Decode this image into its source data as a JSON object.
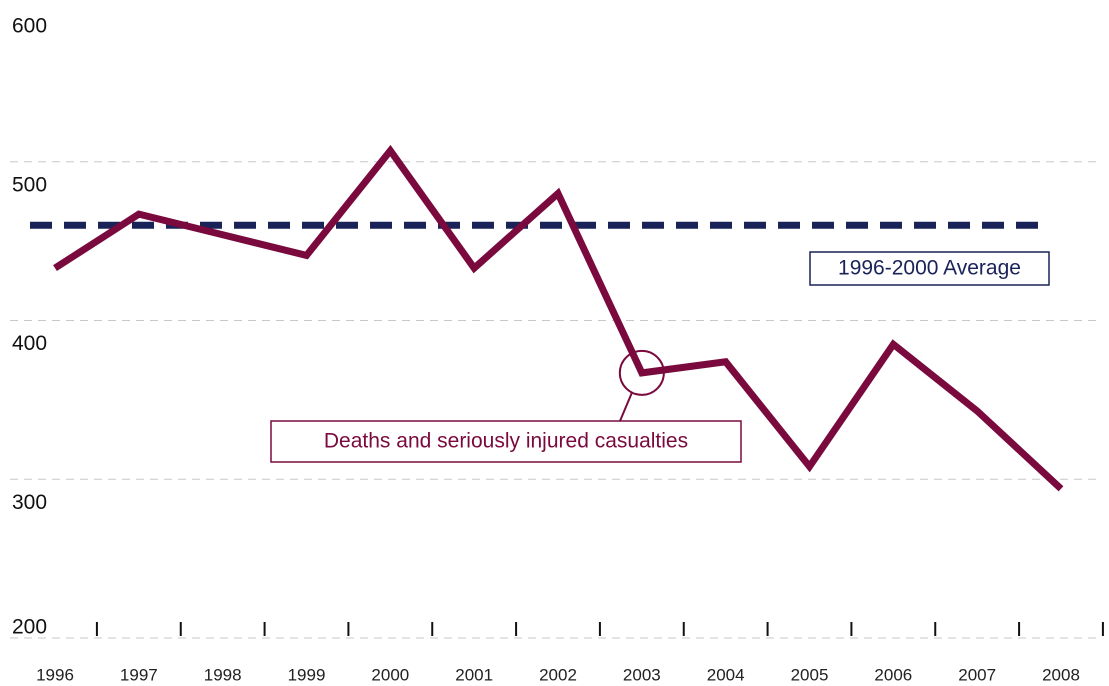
{
  "chart_data": {
    "type": "line",
    "x": [
      1996,
      1997,
      1998,
      1999,
      2000,
      2001,
      2002,
      2003,
      2004,
      2005,
      2006,
      2007,
      2008
    ],
    "series": [
      {
        "name": "Deaths and seriously injured casualties",
        "color": "#7a0a3e",
        "values": [
          433,
          467,
          454,
          441,
          507,
          433,
          480,
          367,
          374,
          308,
          385,
          343,
          294
        ]
      }
    ],
    "average": {
      "label": "1996-2000 Average",
      "value": 460,
      "color": "#1a2358"
    },
    "ylim": [
      200,
      600
    ],
    "yticks": [
      200,
      300,
      400,
      500,
      600
    ],
    "grid": true
  }
}
